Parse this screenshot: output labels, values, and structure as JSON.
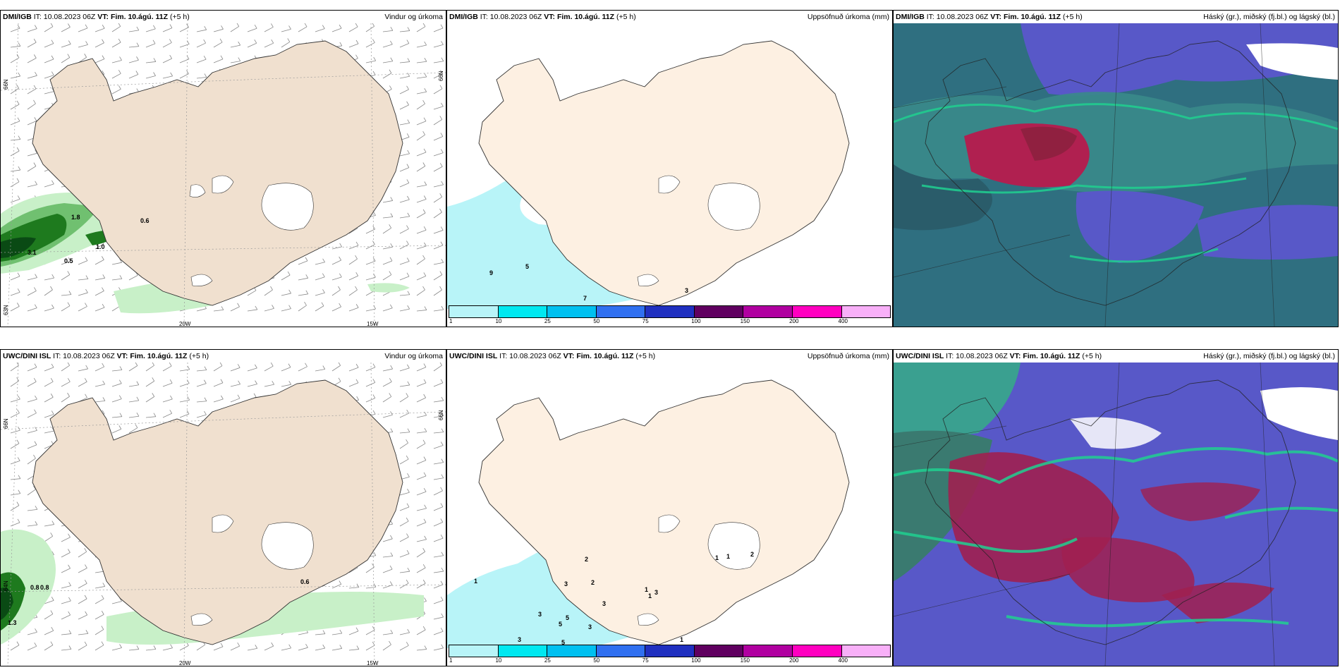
{
  "panels": [
    {
      "model": "DMI/IGB",
      "it": "IT: 10.08.2023 06Z",
      "vt_label": "VT:",
      "vt": "Fim. 10.ágú. 11Z",
      "lead": "(+5 h)",
      "title": "Vindur og úrkoma"
    },
    {
      "model": "DMI/IGB",
      "it": "IT: 10.08.2023 06Z",
      "vt_label": "VT:",
      "vt": "Fim. 10.ágú. 11Z",
      "lead": "(+5 h)",
      "title": "Uppsöfnuð úrkoma (mm)"
    },
    {
      "model": "DMI/IGB",
      "it": "IT: 10.08.2023 06Z",
      "vt_label": "VT:",
      "vt": "Fim. 10.ágú. 11Z",
      "lead": "(+5 h)",
      "title": "Háský (gr.), miðský (fj.bl.) og lágský (bl.)"
    },
    {
      "model": "UWC/DINI ISL",
      "it": "IT: 10.08.2023 06Z",
      "vt_label": "VT:",
      "vt": "Fim. 10.ágú. 11Z",
      "lead": "(+5 h)",
      "title": "Vindur og úrkoma"
    },
    {
      "model": "UWC/DINI ISL",
      "it": "IT: 10.08.2023 06Z",
      "vt_label": "VT:",
      "vt": "Fim. 10.ágú. 11Z",
      "lead": "(+5 h)",
      "title": "Uppsöfnuð úrkoma (mm)"
    },
    {
      "model": "UWC/DINI ISL",
      "it": "IT: 10.08.2023 06Z",
      "vt_label": "VT:",
      "vt": "Fim. 10.ágú. 11Z",
      "lead": "(+5 h)",
      "title": "Háský (gr.), miðský (fj.bl.) og lágský (bl.)"
    }
  ],
  "graticule": {
    "lat_top": "66N",
    "lat_mid": "64N",
    "lat_bot": "63N",
    "lon_left": "20W",
    "lon_right": "15W"
  },
  "colorbar": {
    "ticks": [
      "1",
      "10",
      "25",
      "50",
      "75",
      "100",
      "150",
      "200",
      "400"
    ],
    "colors": [
      "#b8f4f8",
      "#00e8f0",
      "#00c0f0",
      "#3070f0",
      "#2030c0",
      "#600060",
      "#b000a0",
      "#ff00c0",
      "#f8b0f8"
    ]
  },
  "precip_labels_top": [
    "0.6",
    "3.1",
    "0.5",
    "1.0",
    "1.8"
  ],
  "precip_labels_bottom": [
    "0.8",
    "0.8",
    "0.6",
    "1.3"
  ],
  "accum_labels_top": [
    "9",
    "5",
    "7",
    "3"
  ],
  "accum_labels_bottom": [
    "1",
    "2",
    "3",
    "2",
    "3",
    "5",
    "5",
    "3",
    "3",
    "3",
    "5",
    "1",
    "1",
    "3",
    "1",
    "1",
    "2",
    "1"
  ]
}
